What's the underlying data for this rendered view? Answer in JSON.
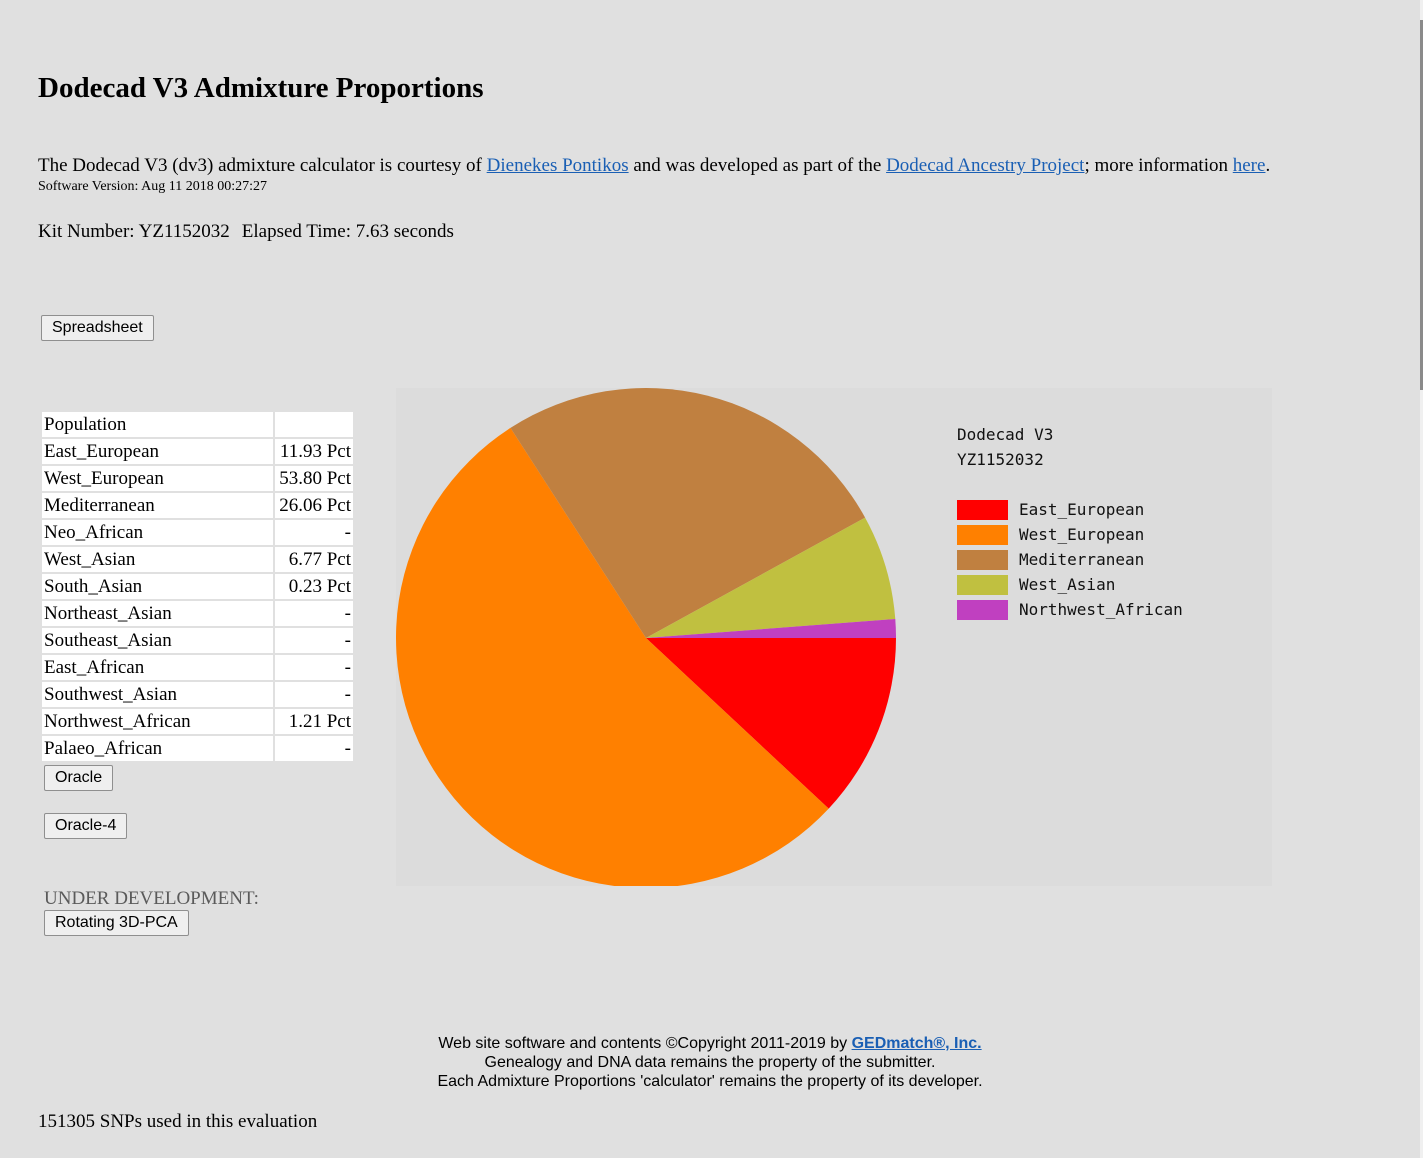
{
  "page": {
    "title": "Dodecad V3 Admixture Proportions",
    "intro_before_author": "The Dodecad V3 (dv3) admixture calculator is courtesy of ",
    "author_link": "Dienekes Pontikos",
    "intro_middle": " and was developed as part of the ",
    "project_link": "Dodecad Ancestry Project",
    "intro_after_project": "; more information ",
    "here_link": "here",
    "intro_end": ".",
    "software_version": "Software Version: Aug 11 2018 00:27:27",
    "kit_number": "Kit Number: YZ1152032",
    "elapsed_time": "Elapsed Time: 7.63 seconds"
  },
  "buttons": {
    "spreadsheet": "Spreadsheet",
    "oracle": "Oracle",
    "oracle4": "Oracle-4",
    "rotating": "Rotating 3D-PCA"
  },
  "table": {
    "header": "Population",
    "rows": [
      {
        "name": "East_European",
        "value": "11.93 Pct"
      },
      {
        "name": "West_European",
        "value": "53.80 Pct"
      },
      {
        "name": "Mediterranean",
        "value": "26.06 Pct"
      },
      {
        "name": "Neo_African",
        "value": "-"
      },
      {
        "name": "West_Asian",
        "value": "6.77 Pct"
      },
      {
        "name": "South_Asian",
        "value": "0.23 Pct"
      },
      {
        "name": "Northeast_Asian",
        "value": "-"
      },
      {
        "name": "Southeast_Asian",
        "value": "-"
      },
      {
        "name": "East_African",
        "value": "-"
      },
      {
        "name": "Southwest_Asian",
        "value": "-"
      },
      {
        "name": "Northwest_African",
        "value": "1.21 Pct"
      },
      {
        "name": "Palaeo_African",
        "value": "-"
      }
    ]
  },
  "under_development": "UNDER DEVELOPMENT:",
  "chart_data": {
    "type": "pie",
    "title": "Dodecad V3",
    "subtitle": "YZ1152032",
    "legend_position": "right",
    "slices": [
      {
        "label": "East_European",
        "value": 11.93,
        "color": "#ff0000"
      },
      {
        "label": "West_European",
        "value": 53.8,
        "color": "#ff8000"
      },
      {
        "label": "Mediterranean",
        "value": 26.06,
        "color": "#c08040"
      },
      {
        "label": "West_Asian",
        "value": 6.77,
        "color": "#c0c040"
      },
      {
        "label": "Northwest_African",
        "value": 1.21,
        "color": "#c040c0"
      }
    ]
  },
  "footer": {
    "line1_before": "Web site software and contents ©Copyright 2011-2019 by ",
    "line1_link": "GEDmatch®, Inc.",
    "line2": "Genealogy and DNA data remains the property of the submitter.",
    "line3": "Each Admixture Proportions 'calculator' remains the property of its developer."
  },
  "snps": "151305 SNPs used in this evaluation"
}
